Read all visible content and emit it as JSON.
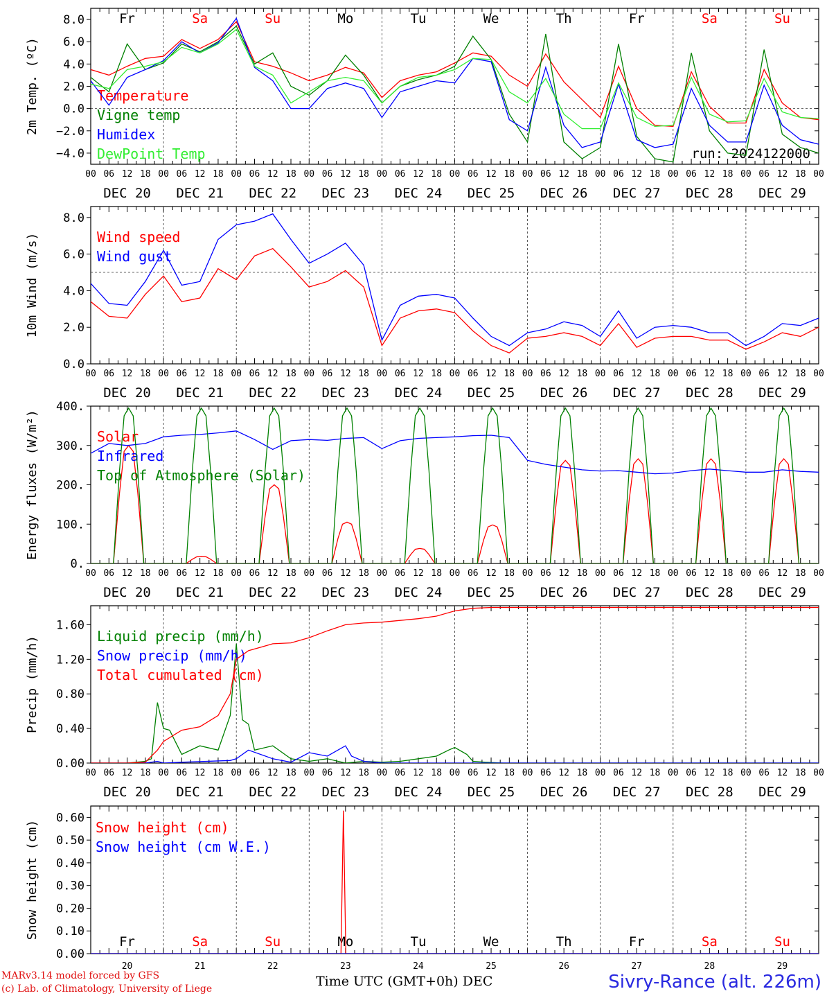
{
  "colors": {
    "red": "#ff0000",
    "green": "#008000",
    "blue": "#0000ff",
    "lightgreen": "#33ee33",
    "grey": "#555555"
  },
  "footer": {
    "credit1": "MARv3.14 model forced by GFS",
    "credit2": "(c) Lab. of Climatology, University of Liege",
    "xlabel": "Time UTC (GMT+0h) DEC",
    "site": "Sivry-Rance (alt. 226m)"
  },
  "chart_data": [
    {
      "type": "line",
      "ylabel": "2m Temp. (ºC)",
      "ylim": [
        -5,
        9
      ],
      "yticks": [
        -4,
        -2,
        0,
        2,
        4,
        6,
        8
      ],
      "ytick_labels": [
        "−4.0",
        "−2.0",
        "0.0",
        "2.0",
        "4.0",
        "6.0",
        "8.0"
      ],
      "hline": 0,
      "annotation": "run: 2024122000",
      "day_names_top": [
        "Fr",
        "Sa",
        "Su",
        "Mo",
        "Tu",
        "We",
        "Th",
        "Fr",
        "Sa",
        "Su"
      ],
      "day_name_colors": [
        "black",
        "red",
        "red",
        "black",
        "black",
        "black",
        "black",
        "black",
        "red",
        "red"
      ],
      "hour_ticks": [
        "00",
        "06",
        "12",
        "18"
      ],
      "dates": [
        "DEC 20",
        "DEC 21",
        "DEC 22",
        "DEC 23",
        "DEC 24",
        "DEC 25",
        "DEC 26",
        "DEC 27",
        "DEC 28",
        "DEC 29"
      ],
      "x_unit": "hours since 2024-12-20 00 UTC",
      "series": [
        {
          "name": "Temperature",
          "color": "red",
          "x": [
            0,
            6,
            12,
            18,
            24,
            30,
            36,
            42,
            48,
            54,
            60,
            66,
            72,
            78,
            84,
            90,
            96,
            102,
            108,
            114,
            120,
            126,
            132,
            138,
            144,
            150,
            156,
            162,
            168,
            174,
            180,
            186,
            192,
            198,
            204,
            210,
            216,
            222,
            228,
            234,
            240
          ],
          "y": [
            3.5,
            3.0,
            3.8,
            4.5,
            4.7,
            6.2,
            5.4,
            6.2,
            7.8,
            4.2,
            3.8,
            3.2,
            2.5,
            3.0,
            3.7,
            3.2,
            1.0,
            2.5,
            3.0,
            3.3,
            4.1,
            5.0,
            4.7,
            3.0,
            2.0,
            4.9,
            2.4,
            0.8,
            -0.8,
            3.8,
            0.0,
            -1.5,
            -1.6,
            3.3,
            0.2,
            -1.3,
            -1.3,
            3.5,
            0.5,
            -0.8,
            -1.0
          ]
        },
        {
          "name": "Vigne temp",
          "color": "green",
          "x": [
            0,
            6,
            12,
            18,
            24,
            30,
            36,
            42,
            48,
            54,
            60,
            66,
            72,
            78,
            84,
            90,
            96,
            102,
            108,
            114,
            120,
            126,
            132,
            138,
            144,
            150,
            156,
            162,
            168,
            174,
            180,
            186,
            192,
            198,
            204,
            210,
            216,
            222,
            228,
            234,
            240
          ],
          "y": [
            2.8,
            1.5,
            5.8,
            3.5,
            4.1,
            5.8,
            5.1,
            6.0,
            7.4,
            4.0,
            5.0,
            2.0,
            1.2,
            2.5,
            4.8,
            3.0,
            0.5,
            2.0,
            2.6,
            3.0,
            3.8,
            6.5,
            4.4,
            -0.5,
            -3.0,
            6.7,
            -3.0,
            -4.5,
            -3.5,
            5.8,
            -2.5,
            -4.5,
            -4.8,
            5.0,
            -2.0,
            -4.0,
            -4.2,
            5.3,
            -2.3,
            -3.5,
            -4.0
          ]
        },
        {
          "name": "Humidex",
          "color": "blue",
          "x": [
            0,
            6,
            12,
            18,
            24,
            30,
            36,
            42,
            48,
            54,
            60,
            66,
            72,
            78,
            84,
            90,
            96,
            102,
            108,
            114,
            120,
            126,
            132,
            138,
            144,
            150,
            156,
            162,
            168,
            174,
            180,
            186,
            192,
            198,
            204,
            210,
            216,
            222,
            228,
            234,
            240
          ],
          "y": [
            2.5,
            0.3,
            2.8,
            3.5,
            4.3,
            6.0,
            5.0,
            5.9,
            8.1,
            3.7,
            2.5,
            0.0,
            0.0,
            1.8,
            2.3,
            1.8,
            -0.8,
            1.5,
            2.0,
            2.5,
            2.3,
            4.5,
            4.2,
            -1.0,
            -2.0,
            3.7,
            -1.5,
            -3.5,
            -3.0,
            2.2,
            -2.8,
            -3.5,
            -3.2,
            1.8,
            -1.5,
            -3.0,
            -3.0,
            2.1,
            -1.5,
            -2.8,
            -3.2
          ]
        },
        {
          "name": "DewPoint Temp",
          "color": "lightgreen",
          "x": [
            0,
            6,
            12,
            18,
            24,
            30,
            36,
            42,
            48,
            54,
            60,
            66,
            72,
            78,
            84,
            90,
            96,
            102,
            108,
            114,
            120,
            126,
            132,
            138,
            144,
            150,
            156,
            162,
            168,
            174,
            180,
            186,
            192,
            198,
            204,
            210,
            216,
            222,
            228,
            234,
            240
          ],
          "y": [
            2.2,
            1.8,
            3.5,
            3.8,
            4.2,
            5.5,
            5.0,
            5.8,
            7.1,
            3.8,
            3.0,
            0.5,
            1.5,
            2.5,
            2.8,
            2.5,
            0.5,
            2.0,
            2.8,
            3.0,
            3.5,
            4.5,
            4.4,
            1.5,
            0.5,
            2.7,
            -0.5,
            -1.8,
            -1.8,
            2.3,
            -0.8,
            -1.6,
            -1.5,
            2.8,
            -0.5,
            -1.2,
            -1.1,
            2.7,
            -0.3,
            -0.8,
            -0.9
          ]
        }
      ]
    },
    {
      "type": "line",
      "ylabel": "10m Wind (m/s)",
      "ylim": [
        0,
        8.6
      ],
      "yticks": [
        0,
        2,
        4,
        6,
        8
      ],
      "ytick_labels": [
        "0.0",
        "2.0",
        "4.0",
        "6.0",
        "8.0"
      ],
      "hline": 5,
      "hour_ticks": [
        "00",
        "06",
        "12",
        "18"
      ],
      "dates": [
        "DEC 20",
        "DEC 21",
        "DEC 22",
        "DEC 23",
        "DEC 24",
        "DEC 25",
        "DEC 26",
        "DEC 27",
        "DEC 28",
        "DEC 29"
      ],
      "series": [
        {
          "name": "Wind speed",
          "color": "red",
          "x": [
            0,
            6,
            12,
            18,
            24,
            30,
            36,
            42,
            48,
            54,
            60,
            66,
            72,
            78,
            84,
            90,
            96,
            102,
            108,
            114,
            120,
            126,
            132,
            138,
            144,
            150,
            156,
            162,
            168,
            174,
            180,
            186,
            192,
            198,
            204,
            210,
            216,
            222,
            228,
            234,
            240
          ],
          "y": [
            3.4,
            2.6,
            2.5,
            3.8,
            4.8,
            3.4,
            3.6,
            5.2,
            4.6,
            5.9,
            6.3,
            5.3,
            4.2,
            4.5,
            5.1,
            4.2,
            1.0,
            2.5,
            2.9,
            3.0,
            2.8,
            1.8,
            1.0,
            0.6,
            1.4,
            1.5,
            1.7,
            1.5,
            1.0,
            2.2,
            0.9,
            1.4,
            1.5,
            1.5,
            1.3,
            1.3,
            0.8,
            1.2,
            1.7,
            1.5,
            2.0
          ]
        },
        {
          "name": "Wind gust",
          "color": "blue",
          "x": [
            0,
            6,
            12,
            18,
            24,
            30,
            36,
            42,
            48,
            54,
            60,
            66,
            72,
            78,
            84,
            90,
            96,
            102,
            108,
            114,
            120,
            126,
            132,
            138,
            144,
            150,
            156,
            162,
            168,
            174,
            180,
            186,
            192,
            198,
            204,
            210,
            216,
            222,
            228,
            234,
            240
          ],
          "y": [
            4.4,
            3.3,
            3.2,
            4.5,
            6.2,
            4.3,
            4.5,
            6.8,
            7.6,
            7.8,
            8.2,
            6.8,
            5.5,
            6.0,
            6.6,
            5.4,
            1.3,
            3.2,
            3.7,
            3.8,
            3.6,
            2.5,
            1.5,
            1.0,
            1.7,
            1.9,
            2.3,
            2.1,
            1.5,
            2.9,
            1.4,
            2.0,
            2.1,
            2.0,
            1.7,
            1.7,
            1.0,
            1.5,
            2.2,
            2.1,
            2.5
          ]
        }
      ]
    },
    {
      "type": "line",
      "ylabel": "Energy fluxes (W/m²)",
      "ylim": [
        0,
        400
      ],
      "yticks": [
        0,
        100,
        200,
        300,
        400
      ],
      "ytick_labels": [
        "0.",
        "100.",
        "200.",
        "300.",
        "400."
      ],
      "hour_ticks": [
        "00",
        "06",
        "12",
        "18"
      ],
      "dates": [
        "DEC 20",
        "DEC 21",
        "DEC 22",
        "DEC 23",
        "DEC 24",
        "DEC 25",
        "DEC 26",
        "DEC 27",
        "DEC 28",
        "DEC 29"
      ],
      "series": [
        {
          "name": "Solar",
          "color": "red",
          "daily_peak_at_hour": 12.5,
          "daily_peaks": [
            300,
            18,
            200,
            105,
            38,
            98,
            262,
            266,
            266,
            266
          ]
        },
        {
          "name": "Infrared",
          "color": "blue",
          "x": [
            0,
            6,
            12,
            18,
            24,
            30,
            36,
            42,
            48,
            54,
            60,
            66,
            72,
            78,
            84,
            90,
            96,
            102,
            108,
            114,
            120,
            126,
            132,
            138,
            144,
            150,
            156,
            162,
            168,
            174,
            180,
            186,
            192,
            198,
            204,
            210,
            216,
            222,
            228,
            234,
            240
          ],
          "y": [
            280,
            305,
            300,
            305,
            322,
            326,
            328,
            332,
            337,
            315,
            290,
            312,
            315,
            313,
            318,
            320,
            292,
            312,
            318,
            320,
            322,
            325,
            326,
            320,
            262,
            252,
            245,
            238,
            235,
            236,
            232,
            228,
            230,
            236,
            240,
            236,
            232,
            232,
            238,
            234,
            232
          ]
        },
        {
          "name": "Top of Atmosphere (Solar)",
          "color": "green",
          "daily_peak_at_hour": 12.5,
          "daily_peaks": [
            395,
            395,
            395,
            395,
            395,
            395,
            395,
            395,
            395,
            395
          ]
        }
      ]
    },
    {
      "type": "line",
      "ylabel": "Precip (mm/h)",
      "ylim": [
        0,
        1.82
      ],
      "yticks": [
        0,
        0.4,
        0.8,
        1.2,
        1.6
      ],
      "ytick_labels": [
        "0.00",
        "0.40",
        "0.80",
        "1.20",
        "1.60"
      ],
      "hour_ticks": [
        "00",
        "06",
        "12",
        "18"
      ],
      "dates": [
        "DEC 20",
        "DEC 21",
        "DEC 22",
        "DEC 23",
        "DEC 24",
        "DEC 25",
        "DEC 26",
        "DEC 27",
        "DEC 28",
        "DEC 29"
      ],
      "series": [
        {
          "name": "Liquid precip (mm/h)",
          "color": "green",
          "x": [
            0,
            12,
            18,
            20,
            22,
            24,
            26,
            30,
            36,
            42,
            46,
            48,
            50,
            52,
            54,
            60,
            66,
            72,
            78,
            84,
            90,
            96,
            102,
            108,
            114,
            118,
            120,
            124,
            126,
            130,
            136,
            240
          ],
          "y": [
            0,
            0,
            0.02,
            0.05,
            0.7,
            0.4,
            0.38,
            0.1,
            0.2,
            0.15,
            0.55,
            1.38,
            0.5,
            0.45,
            0.15,
            0.2,
            0.05,
            0.02,
            0.05,
            0.0,
            0.02,
            0.01,
            0.02,
            0.05,
            0.08,
            0.15,
            0.18,
            0.1,
            0.02,
            0.01,
            0,
            0
          ]
        },
        {
          "name": "Snow precip (mm/h)",
          "color": "blue",
          "x": [
            0,
            18,
            22,
            24,
            30,
            46,
            48,
            52,
            60,
            66,
            72,
            78,
            84,
            86,
            90,
            96,
            240
          ],
          "y": [
            0,
            0,
            0.02,
            0.0,
            0.01,
            0.03,
            0.05,
            0.15,
            0.05,
            0.01,
            0.12,
            0.08,
            0.2,
            0.08,
            0.02,
            0.0,
            0
          ]
        },
        {
          "name": "Total cumulated (cm)",
          "color": "red",
          "x": [
            0,
            12,
            18,
            22,
            24,
            30,
            36,
            42,
            46,
            48,
            52,
            60,
            66,
            72,
            78,
            84,
            90,
            96,
            102,
            108,
            114,
            120,
            126,
            132,
            138,
            144,
            240
          ],
          "y": [
            0,
            0,
            0.01,
            0.15,
            0.25,
            0.38,
            0.42,
            0.55,
            0.8,
            1.2,
            1.3,
            1.38,
            1.39,
            1.45,
            1.53,
            1.6,
            1.62,
            1.63,
            1.65,
            1.67,
            1.7,
            1.76,
            1.79,
            1.8,
            1.8,
            1.8,
            1.8
          ]
        }
      ]
    },
    {
      "type": "line",
      "ylabel": "Snow height (cm)",
      "ylim": [
        0,
        0.65
      ],
      "yticks": [
        0,
        0.1,
        0.2,
        0.3,
        0.4,
        0.5,
        0.6
      ],
      "ytick_labels": [
        "0.00",
        "0.10",
        "0.20",
        "0.30",
        "0.40",
        "0.50",
        "0.60"
      ],
      "day_names_bottom": [
        "Fr",
        "Sa",
        "Su",
        "Mo",
        "Tu",
        "We",
        "Th",
        "Fr",
        "Sa",
        "Su"
      ],
      "day_numbers": [
        "20",
        "21",
        "22",
        "23",
        "24",
        "25",
        "26",
        "27",
        "28",
        "29"
      ],
      "series": [
        {
          "name": "Snow height (cm)",
          "color": "red",
          "x": [
            0,
            82,
            82.5,
            83.3,
            84.1,
            84.8,
            240
          ],
          "y": [
            0,
            0,
            0.0,
            0.63,
            0.0,
            0,
            0
          ]
        },
        {
          "name": "Snow height (cm W.E.)",
          "color": "blue",
          "x": [
            0,
            240
          ],
          "y": [
            0,
            0
          ]
        }
      ]
    }
  ]
}
